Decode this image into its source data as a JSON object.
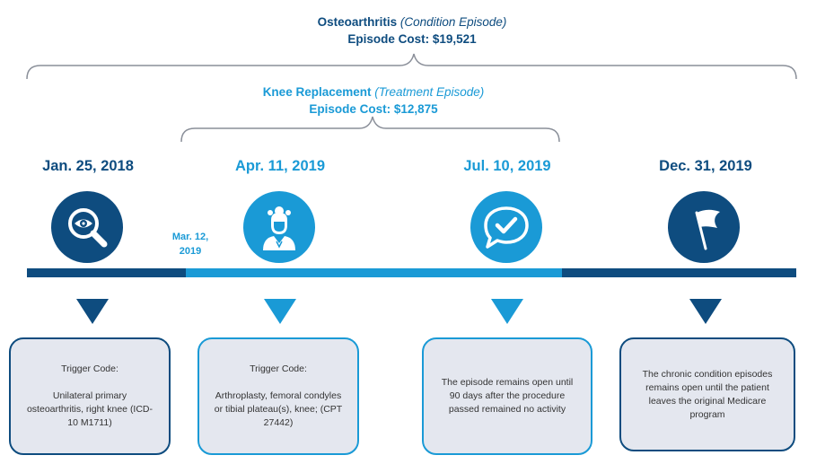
{
  "condition_episode": {
    "name": "Osteoarthritis",
    "type": "(Condition Episode)",
    "cost": "Episode Cost: $19,521"
  },
  "treatment_episode": {
    "name": "Knee Replacement",
    "type": "(Treatment Episode)",
    "cost": "Episode Cost: $12,875"
  },
  "colors": {
    "dark_blue": "#0e4c7f",
    "light_blue": "#1a9ad6",
    "box_fill": "#e4e7ef",
    "bracket_gray": "#8a8f99"
  },
  "events": [
    {
      "date": "Jan. 25, 2018",
      "icon": "magnifier-eye-icon",
      "box_title": "Trigger Code:",
      "box_text": "Unilateral primary osteoarthritis, right knee (ICD-10 M1711)"
    },
    {
      "date": "Apr. 11, 2019",
      "icon": "patient-person-icon",
      "box_title": "Trigger Code:",
      "box_text": "Arthroplasty, femoral condyles or tibial plateau(s), knee; (CPT 27442)"
    },
    {
      "date": "Jul. 10, 2019",
      "icon": "speech-bubble-check-icon",
      "box_title": "",
      "box_text": "The episode remains open until 90 days after the procedure passed remained no activity"
    },
    {
      "date": "Dec. 31, 2019",
      "icon": "flag-icon",
      "box_title": "",
      "box_text": "The chronic condition episodes remains open until the patient leaves the original Medicare program"
    }
  ],
  "treatment_start": {
    "date_line1": "Mar. 12,",
    "date_line2": "2019"
  }
}
